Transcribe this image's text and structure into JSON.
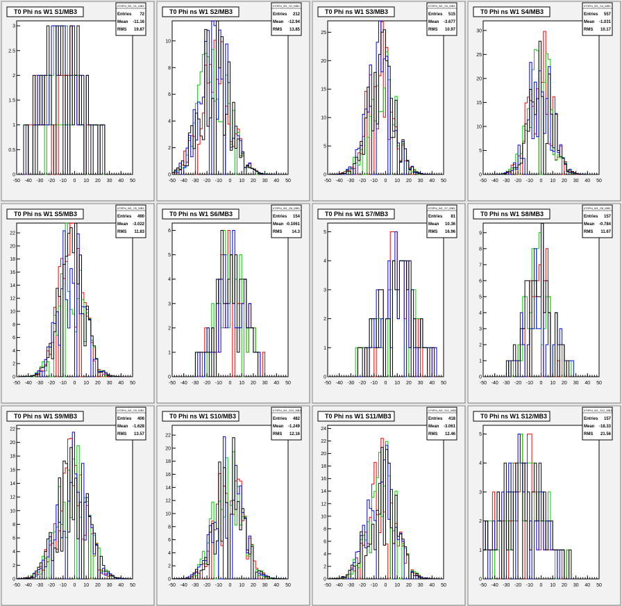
{
  "colors": {
    "run1": "#ff0000",
    "run2": "#00cc00",
    "run3": "#0000ff",
    "run4": "#000000"
  },
  "chart_data": [
    {
      "type": "bar",
      "title": "T0 Phi ns W1 S1/MB3",
      "hname": "hT0Phi_W1_S1_MB3",
      "entries": "72",
      "mean": "-11.16",
      "rms": "19.87",
      "xlim": [
        -50,
        50
      ],
      "ylim": [
        0,
        3.1
      ],
      "yticks": [
        0,
        0.5,
        1,
        1.5,
        2,
        2.5,
        3
      ],
      "center": -11,
      "sigma": 20,
      "peak": 2.3
    },
    {
      "type": "bar",
      "title": "T0 Phi ns W1 S2/MB3",
      "hname": "hT0Phi_W1_S2_MB3",
      "entries": "212",
      "mean": "-12.94",
      "rms": "13.85",
      "xlim": [
        -50,
        50
      ],
      "ylim": [
        0,
        11.5
      ],
      "yticks": [
        0,
        2,
        4,
        6,
        8,
        10
      ],
      "center": -13,
      "sigma": 13,
      "peak": 8.5
    },
    {
      "type": "bar",
      "title": "T0 Phi ns W1 S3/MB3",
      "hname": "hT0Phi_W1_S3_MB3",
      "entries": "515",
      "mean": "-3.677",
      "rms": "10.97",
      "xlim": [
        -50,
        50
      ],
      "ylim": [
        0,
        27
      ],
      "yticks": [
        0,
        5,
        10,
        15,
        20,
        25
      ],
      "center": -4,
      "sigma": 11,
      "peak": 19
    },
    {
      "type": "bar",
      "title": "T0 Phi ns W1 S4/MB3",
      "hname": "hT0Phi_W1_S4_MB3",
      "entries": "557",
      "mean": "-1.031",
      "rms": "10.17",
      "xlim": [
        -50,
        50
      ],
      "ylim": [
        0,
        32
      ],
      "yticks": [
        0,
        5,
        10,
        15,
        20,
        25,
        30
      ],
      "center": -1,
      "sigma": 10,
      "peak": 22
    },
    {
      "type": "bar",
      "title": "T0 Phi ns W1 S5/MB3",
      "hname": "hT0Phi_W1_S5_MB3",
      "entries": "490",
      "mean": "-3.022",
      "rms": "11.83",
      "xlim": [
        -50,
        50
      ],
      "ylim": [
        0,
        23.5
      ],
      "yticks": [
        0,
        2,
        4,
        6,
        8,
        10,
        12,
        14,
        16,
        18,
        20,
        22
      ],
      "center": -3,
      "sigma": 11,
      "peak": 17
    },
    {
      "type": "bar",
      "title": "T0 Phi ns W1 S6/MB3",
      "hname": "hT0Phi_W1_S6_MB3",
      "entries": "154",
      "mean": "-0.1061",
      "rms": "14.3",
      "xlim": [
        -50,
        50
      ],
      "ylim": [
        0,
        6.3
      ],
      "yticks": [
        0,
        1,
        2,
        3,
        4,
        5,
        6
      ],
      "center": 0,
      "sigma": 14,
      "peak": 4.2
    },
    {
      "type": "bar",
      "title": "T0 Phi ns W1 S7/MB3",
      "hname": "hT0Phi_W1_S7_MB3",
      "entries": "81",
      "mean": "10.36",
      "rms": "16.96",
      "xlim": [
        -50,
        50
      ],
      "ylim": [
        0,
        5.3
      ],
      "yticks": [
        0,
        1,
        2,
        3,
        4,
        5
      ],
      "center": 10,
      "sigma": 17,
      "peak": 3.2
    },
    {
      "type": "bar",
      "title": "T0 Phi ns W1 S8/MB3",
      "hname": "hT0Phi_W1_S8_MB3",
      "entries": "157",
      "mean": "-0.784",
      "rms": "11.67",
      "xlim": [
        -50,
        50
      ],
      "ylim": [
        0,
        9.6
      ],
      "yticks": [
        0,
        1,
        2,
        3,
        4,
        5,
        6,
        7,
        8,
        9
      ],
      "center": -1,
      "sigma": 12,
      "peak": 6.5
    },
    {
      "type": "bar",
      "title": "T0 Phi ns W1 S9/MB3",
      "hname": "hT0Phi_W1_S9_MB3",
      "entries": "406",
      "mean": "-1.628",
      "rms": "13.57",
      "xlim": [
        -50,
        50
      ],
      "ylim": [
        0,
        22.5
      ],
      "yticks": [
        0,
        2,
        4,
        6,
        8,
        10,
        12,
        14,
        16,
        18,
        20,
        22
      ],
      "center": -2,
      "sigma": 13,
      "peak": 14
    },
    {
      "type": "bar",
      "title": "T0 Phi ns W1 S10/MB3",
      "hname": "hT0Phi_W1_S10_MB3",
      "entries": "482",
      "mean": "-1.249",
      "rms": "12.16",
      "xlim": [
        -50,
        50
      ],
      "ylim": [
        0,
        23.5
      ],
      "yticks": [
        0,
        2,
        4,
        6,
        8,
        10,
        12,
        14,
        16,
        18,
        20,
        22
      ],
      "center": -1,
      "sigma": 12,
      "peak": 15
    },
    {
      "type": "bar",
      "title": "T0 Phi ns W1 S11/MB3",
      "hname": "hT0Phi_W1_S11_MB3",
      "entries": "418",
      "mean": "-3.061",
      "rms": "12.46",
      "xlim": [
        -50,
        50
      ],
      "ylim": [
        0,
        24.5
      ],
      "yticks": [
        0,
        2,
        4,
        6,
        8,
        10,
        12,
        14,
        16,
        18,
        20,
        22,
        24
      ],
      "center": -3,
      "sigma": 12,
      "peak": 15
    },
    {
      "type": "bar",
      "title": "T0 Phi ns W1 S12/MB3",
      "hname": "hT0Phi_W1_S12_MB3",
      "entries": "157",
      "mean": "-18.33",
      "rms": "21.56",
      "xlim": [
        -50,
        50
      ],
      "ylim": [
        0,
        5.3
      ],
      "yticks": [
        0,
        1,
        2,
        3,
        4,
        5
      ],
      "center": -18,
      "sigma": 21,
      "peak": 3.5
    }
  ],
  "xticks": [
    -50,
    -40,
    -30,
    -20,
    -10,
    0,
    10,
    20,
    30,
    40,
    50
  ]
}
